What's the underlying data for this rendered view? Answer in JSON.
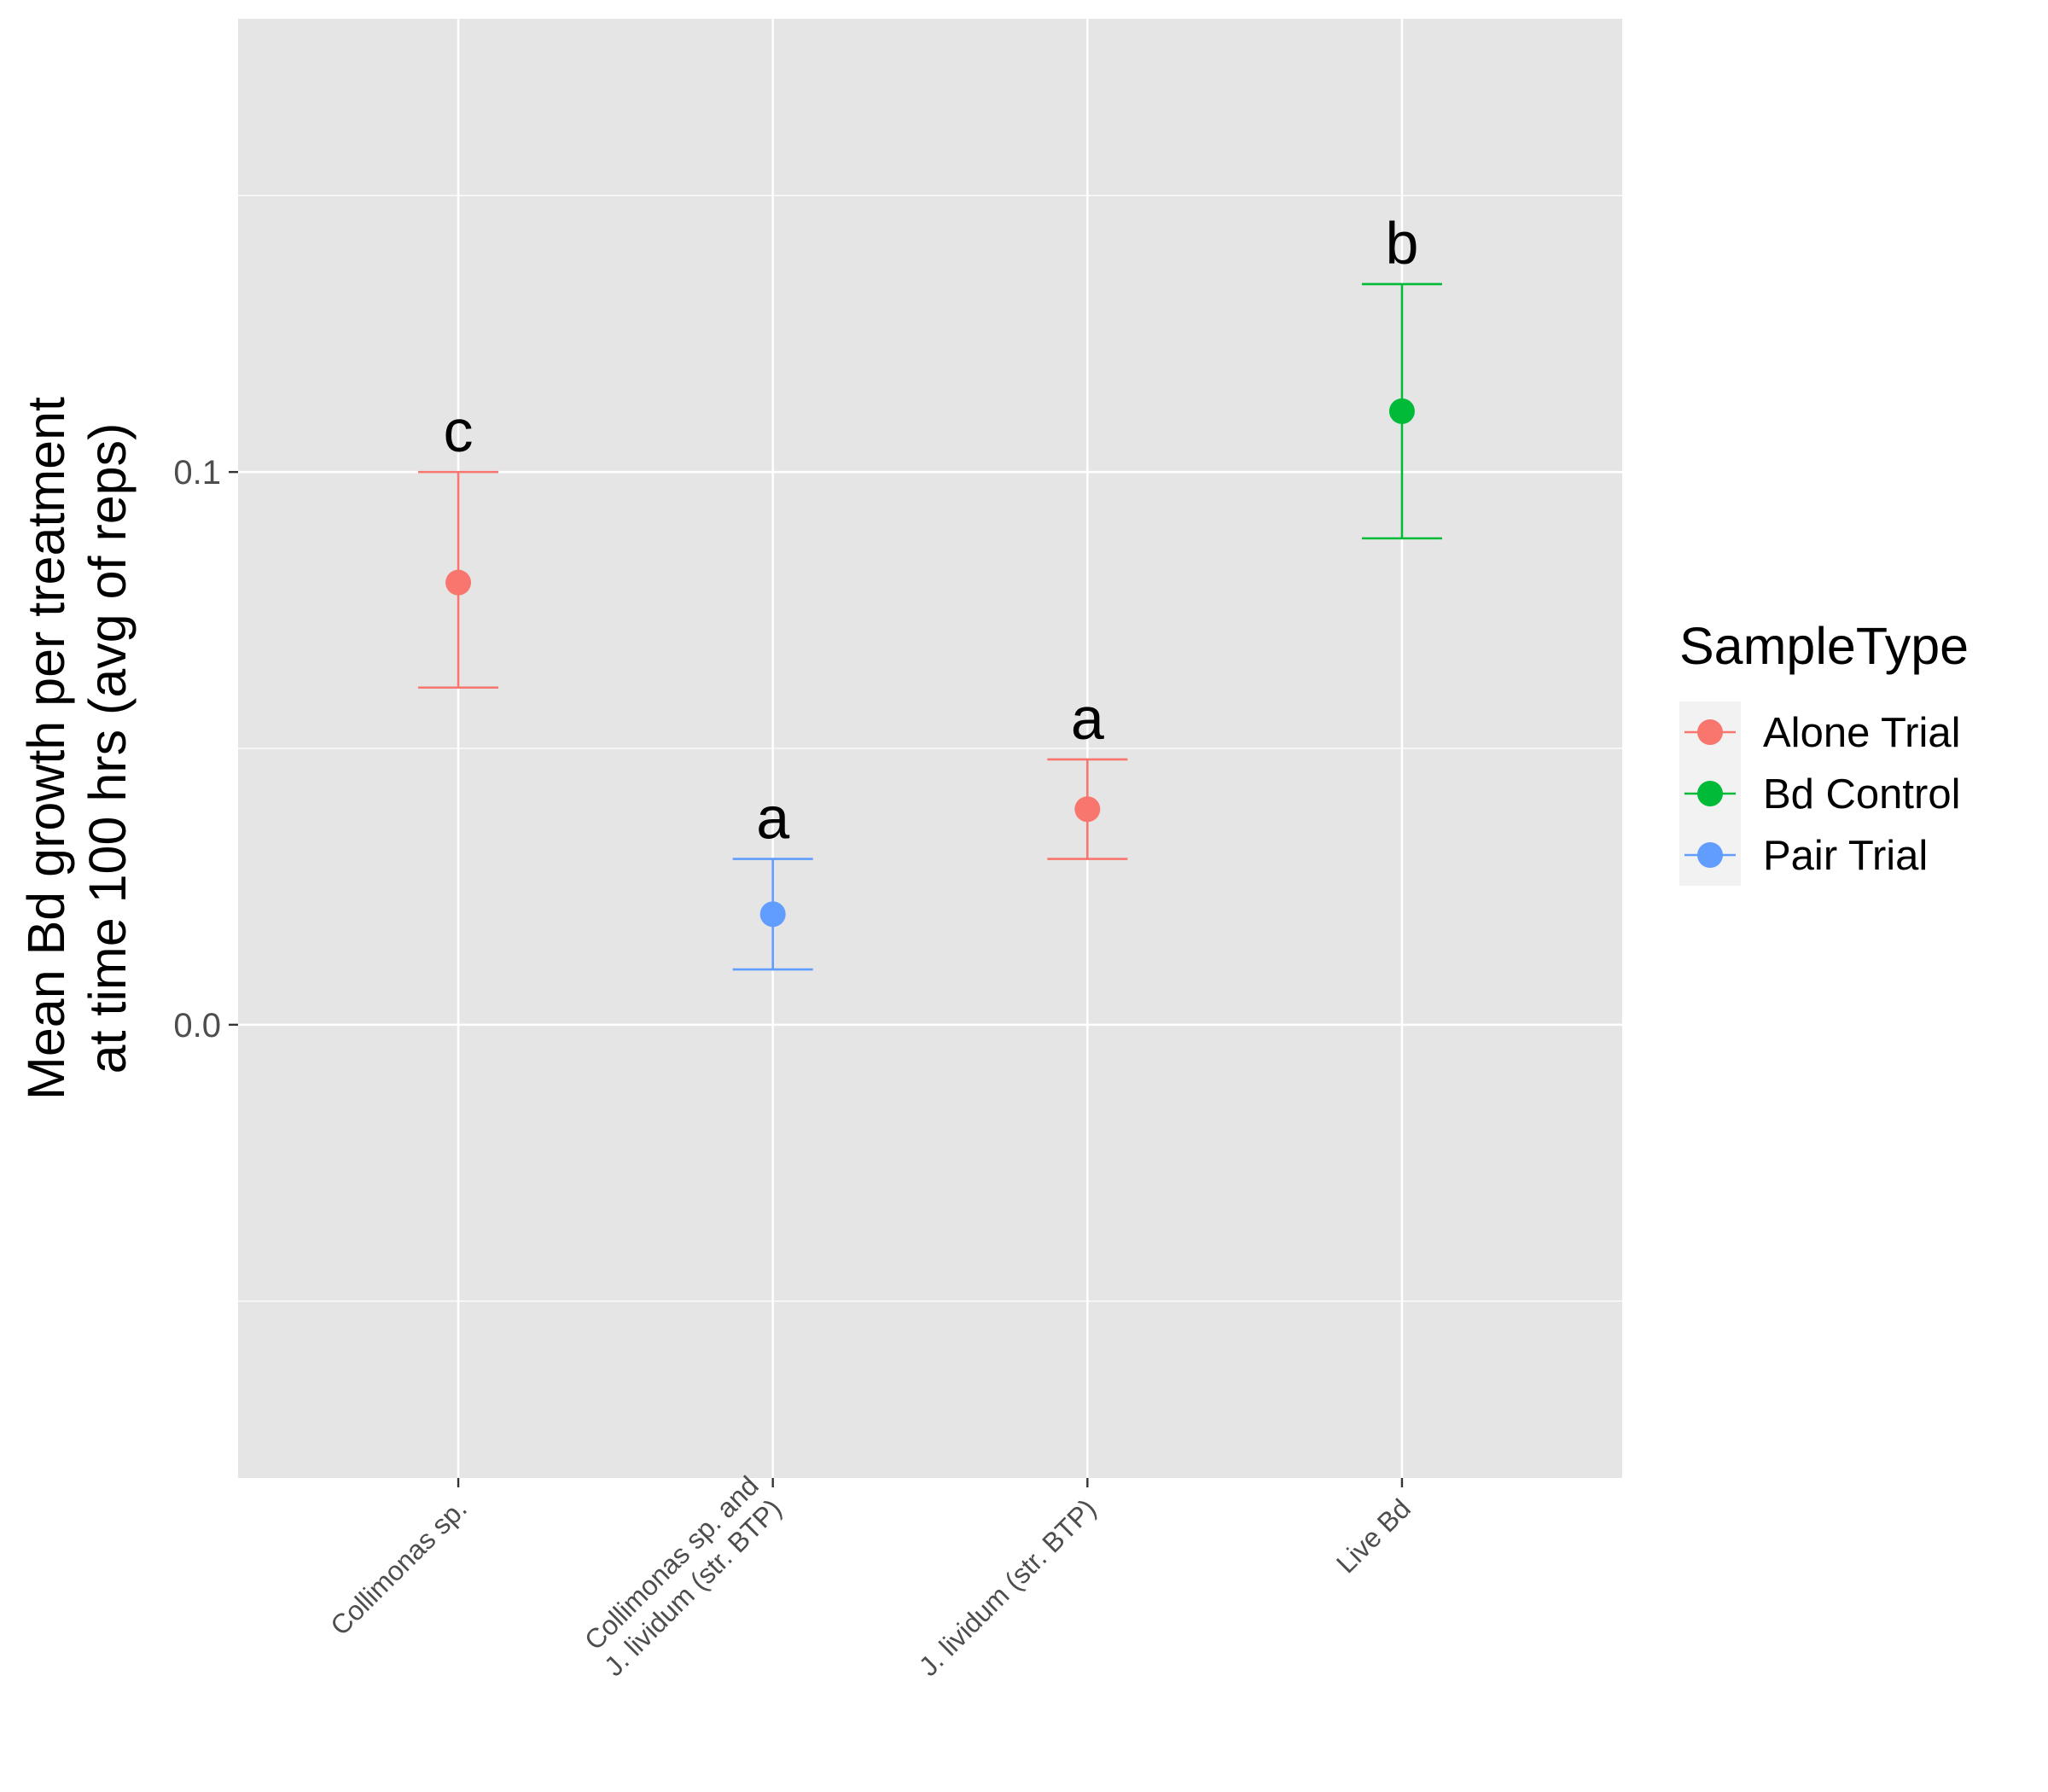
{
  "chart_data": {
    "type": "scatter",
    "title": "",
    "xlabel": "",
    "ylabel_lines": [
      "Mean Bd growth per treatment",
      "at time 100 hrs (avg of reps)"
    ],
    "ylim": [
      -0.082,
      0.182
    ],
    "y_major_ticks": [
      0.0,
      0.1
    ],
    "y_tick_labels": [
      "0.0",
      "0.1"
    ],
    "y_minor_gridlines": [
      -0.05,
      0.05,
      0.15
    ],
    "grid": true,
    "categories": [
      {
        "label_lines": [
          "Collimonas sp."
        ]
      },
      {
        "label_lines": [
          "Collimonas sp. and",
          "J. lividum (str. BTP)"
        ]
      },
      {
        "label_lines": [
          "J. lividum (str. BTP)"
        ]
      },
      {
        "label_lines": [
          "Live Bd"
        ]
      }
    ],
    "points": [
      {
        "category": 0,
        "series": "Alone Trial",
        "y": 0.08,
        "ymin": 0.061,
        "ymax": 0.1,
        "letter": "c"
      },
      {
        "category": 1,
        "series": "Pair Trial",
        "y": 0.02,
        "ymin": 0.01,
        "ymax": 0.03,
        "letter": "a"
      },
      {
        "category": 2,
        "series": "Alone Trial",
        "y": 0.039,
        "ymin": 0.03,
        "ymax": 0.048,
        "letter": "a"
      },
      {
        "category": 3,
        "series": "Bd Control",
        "y": 0.111,
        "ymin": 0.088,
        "ymax": 0.134,
        "letter": "b"
      }
    ],
    "legend": {
      "title": "SampleType",
      "placement": "right",
      "items": [
        {
          "name": "Alone Trial",
          "color": "#F8766D"
        },
        {
          "name": "Bd Control",
          "color": "#00BA38"
        },
        {
          "name": "Pair Trial",
          "color": "#619CFF"
        }
      ]
    }
  }
}
